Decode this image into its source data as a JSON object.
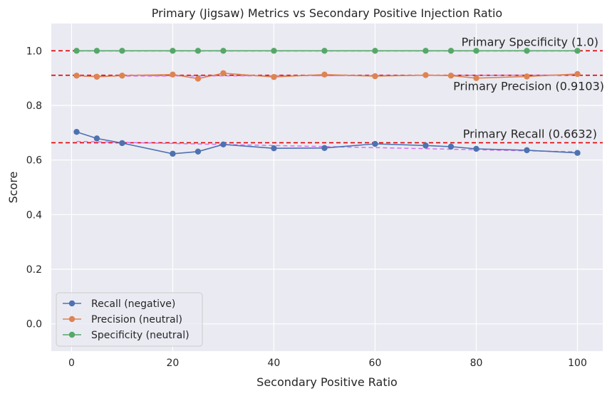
{
  "chart_data": {
    "type": "line",
    "title": "Primary (Jigsaw) Metrics vs Secondary Positive Injection Ratio",
    "xlabel": "Secondary Positive Ratio",
    "ylabel": "Score",
    "xlim": [
      -4,
      105
    ],
    "ylim": [
      -0.1,
      1.1
    ],
    "x_ticks": [
      0,
      20,
      40,
      60,
      80,
      100
    ],
    "y_ticks": [
      0.0,
      0.2,
      0.4,
      0.6,
      0.8,
      1.0
    ],
    "x_tick_labels": [
      "0",
      "20",
      "40",
      "60",
      "80",
      "100"
    ],
    "y_tick_labels": [
      "0.0",
      "0.2",
      "0.4",
      "0.6",
      "0.8",
      "1.0"
    ],
    "grid": true,
    "legend_position": "lower-left",
    "x": [
      1,
      5,
      10,
      20,
      25,
      30,
      40,
      50,
      60,
      70,
      75,
      80,
      90,
      100
    ],
    "series": [
      {
        "name": "Recall (negative)",
        "color": "#4c72b0",
        "values": [
          0.703,
          0.679,
          0.662,
          0.623,
          0.631,
          0.657,
          0.643,
          0.644,
          0.659,
          0.653,
          0.649,
          0.641,
          0.636,
          0.626
        ]
      },
      {
        "name": "Precision (neutral)",
        "color": "#dd8452",
        "values": [
          0.909,
          0.905,
          0.909,
          0.913,
          0.898,
          0.918,
          0.904,
          0.913,
          0.907,
          0.911,
          0.909,
          0.9,
          0.906,
          0.915
        ]
      },
      {
        "name": "Specificity (neutral)",
        "color": "#55a868",
        "values": [
          1.0,
          1.0,
          1.0,
          1.0,
          1.0,
          1.0,
          1.0,
          1.0,
          1.0,
          1.0,
          1.0,
          1.0,
          1.0,
          1.0
        ]
      }
    ],
    "trend_lines": [
      {
        "color": "#d66ef0",
        "x": [
          1,
          100
        ],
        "y": [
          0.668,
          0.63
        ]
      },
      {
        "color": "#d66ef0",
        "x": [
          1,
          100
        ],
        "y": [
          0.907,
          0.911
        ]
      }
    ],
    "reference_lines": [
      {
        "value": 1.0,
        "label": "Primary Specificity (1.0)",
        "color": "#e00000"
      },
      {
        "value": 0.9103,
        "label": "Primary Precision (0.9103)",
        "color": "#e00000"
      },
      {
        "value": 0.6632,
        "label": "Primary Recall (0.6632)",
        "color": "#e00000"
      }
    ]
  }
}
